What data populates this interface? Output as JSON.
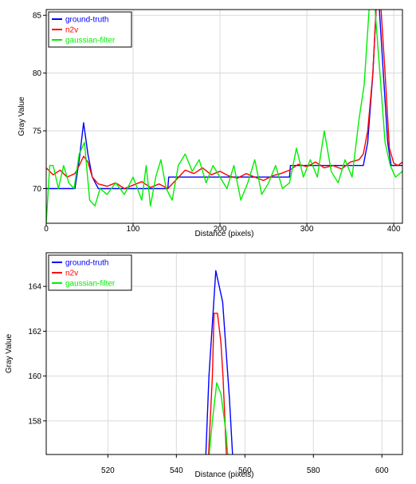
{
  "colors": {
    "ground_truth": "#0000ff",
    "n2v": "#ff0000",
    "gaussian_filter": "#00ee00",
    "grid": "#d9d9d9",
    "axis": "#000000"
  },
  "chart_data": [
    {
      "type": "line",
      "xlabel": "Distance (pixels)",
      "ylabel": "Gray Value",
      "xlim": [
        0,
        410
      ],
      "ylim": [
        67,
        85.5
      ],
      "xticks": [
        0,
        100,
        200,
        300,
        400
      ],
      "yticks": [
        70,
        75,
        80,
        85
      ],
      "grid": true,
      "legend_position": "top-left",
      "series": [
        {
          "name": "ground-truth",
          "color": "#0000ff",
          "x": [
            0,
            33,
            38,
            43,
            48,
            53,
            60,
            140,
            141,
            280,
            281,
            365,
            370,
            376,
            380,
            383,
            388,
            393,
            397,
            401,
            410
          ],
          "y": [
            70,
            70,
            72.5,
            75.7,
            73,
            71,
            70,
            70,
            71,
            71,
            72,
            72,
            74,
            80,
            86,
            86,
            80,
            74,
            72,
            72,
            72
          ]
        },
        {
          "name": "n2v",
          "color": "#ff0000",
          "x": [
            0,
            8,
            16,
            24,
            33,
            38,
            43,
            48,
            53,
            60,
            70,
            80,
            90,
            100,
            110,
            120,
            130,
            140,
            150,
            160,
            170,
            180,
            190,
            200,
            210,
            220,
            230,
            240,
            250,
            260,
            270,
            280,
            290,
            300,
            310,
            320,
            330,
            340,
            350,
            360,
            365,
            370,
            376,
            380,
            385,
            390,
            395,
            400,
            405,
            410
          ],
          "y": [
            71.8,
            71.2,
            71.6,
            71.0,
            71.3,
            72.0,
            72.8,
            72.3,
            71.0,
            70.4,
            70.2,
            70.5,
            70.0,
            70.3,
            70.6,
            70.1,
            70.4,
            70.0,
            70.8,
            71.6,
            71.3,
            71.8,
            71.2,
            71.5,
            71.1,
            70.9,
            71.3,
            71.0,
            70.7,
            71.1,
            71.3,
            71.6,
            72.1,
            71.9,
            72.3,
            71.8,
            72.0,
            71.7,
            72.3,
            72.5,
            73.0,
            75.0,
            80.0,
            86.0,
            86.0,
            80.0,
            73.5,
            72.2,
            72.0,
            72.3
          ]
        },
        {
          "name": "gaussian-filter",
          "color": "#00ee00",
          "x": [
            0,
            4,
            8,
            14,
            20,
            26,
            32,
            38,
            44,
            50,
            56,
            62,
            70,
            80,
            90,
            100,
            110,
            115,
            120,
            126,
            132,
            138,
            145,
            152,
            160,
            168,
            176,
            184,
            192,
            200,
            208,
            216,
            224,
            232,
            240,
            248,
            256,
            264,
            272,
            280,
            288,
            296,
            304,
            312,
            320,
            328,
            336,
            344,
            352,
            360,
            366,
            372,
            378,
            384,
            390,
            396,
            402,
            410
          ],
          "y": [
            67.0,
            72.0,
            72.0,
            70.0,
            72.0,
            70.5,
            70.0,
            73.0,
            74.0,
            69.0,
            68.5,
            70.0,
            69.5,
            70.5,
            69.5,
            71.0,
            69.0,
            72.0,
            68.5,
            71.0,
            72.5,
            70.0,
            69.0,
            72.0,
            73.0,
            71.5,
            72.5,
            70.5,
            72.0,
            71.0,
            70.0,
            72.0,
            69.0,
            70.5,
            72.5,
            69.5,
            70.5,
            72.0,
            70.0,
            70.5,
            73.5,
            71.0,
            72.5,
            71.0,
            75.0,
            71.5,
            70.5,
            72.5,
            71.0,
            76.0,
            79.0,
            86.0,
            86.0,
            80.0,
            74.0,
            72.0,
            71.0,
            71.5
          ]
        }
      ]
    },
    {
      "type": "line",
      "xlabel": "Distance (pixels)",
      "ylabel": "Gray Value",
      "xlim": [
        502,
        606
      ],
      "ylim": [
        156.5,
        165.5
      ],
      "xticks": [
        520,
        540,
        560,
        580,
        600
      ],
      "yticks": [
        158,
        160,
        162,
        164
      ],
      "grid": true,
      "legend_position": "top-left",
      "series": [
        {
          "name": "ground-truth",
          "color": "#0000ff",
          "x": [
            548.6,
            549.5,
            551.5,
            553.5,
            555.5,
            556.4
          ],
          "y": [
            156.5,
            160.0,
            164.7,
            163.3,
            159.0,
            156.5
          ]
        },
        {
          "name": "n2v",
          "color": "#ff0000",
          "x": [
            549.4,
            550.5,
            551.0,
            552.0,
            553.0,
            553.6,
            554.6
          ],
          "y": [
            156.5,
            160.0,
            162.8,
            162.8,
            161.5,
            160.0,
            156.5
          ]
        },
        {
          "name": "gaussian-filter",
          "color": "#00ee00",
          "x": [
            549.6,
            550.5,
            551.8,
            553.0,
            554.5,
            555.0
          ],
          "y": [
            156.5,
            158.0,
            159.7,
            159.2,
            157.5,
            156.5
          ]
        }
      ]
    }
  ]
}
